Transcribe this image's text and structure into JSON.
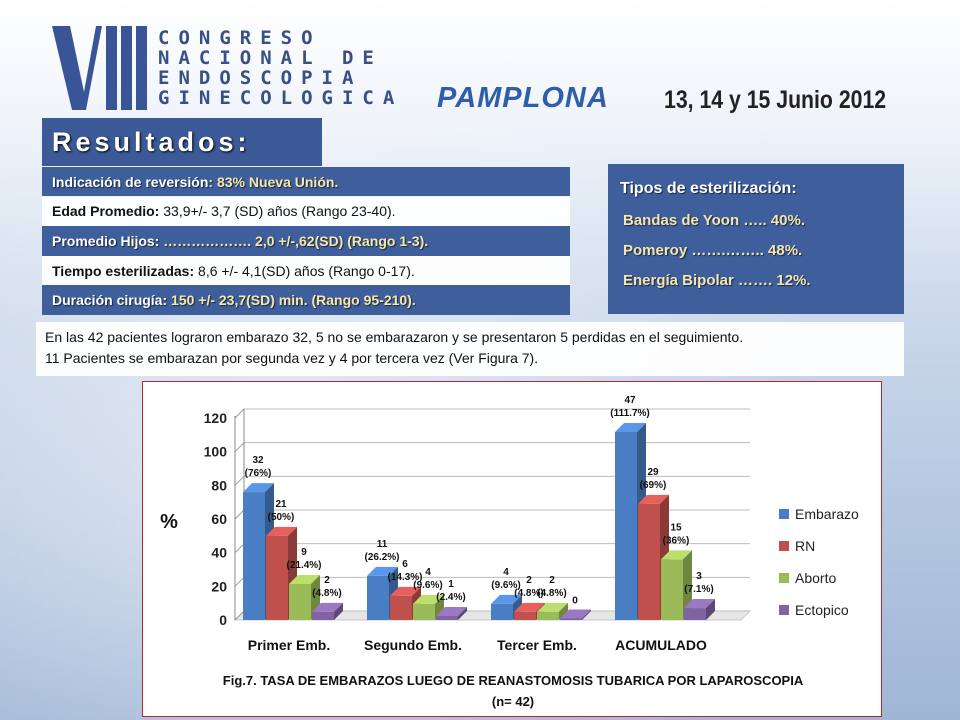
{
  "header": {
    "logo_text": "VIII",
    "congress_lines": [
      "CONGRESO",
      "NACIONAL DE",
      "ENDOSCOPIA",
      "GINECOLOGICA"
    ],
    "city": "PAMPLONA",
    "dates": "13, 14 y 15 Junio 2012"
  },
  "results": {
    "title": "Resultados:",
    "rows": [
      {
        "label": "Indicación de reversión",
        "text": ": 83% Nueva Unión."
      },
      {
        "label": "Edad Promedio:",
        "text": "  33,9+/- 3,7 (SD) años  (Rango 23-40)."
      },
      {
        "label": "Promedio Hijos:",
        "text": " ………………. 2,0 +/-,62(SD) (Rango 1-3)."
      },
      {
        "label": "Tiempo esterilizadas:",
        "text": " 8,6 +/- 4,1(SD) años (Rango 0-17)."
      },
      {
        "label": "Duración cirugía:",
        "text": " 150 +/- 23,7(SD) min. (Rango 95-210)."
      }
    ]
  },
  "sterilization": {
    "title": "Tipos de esterilización:",
    "items": [
      "Bandas de Yoon ….. 40%.",
      "Pomeroy …….…….. 48%.",
      "Energía Bipolar ……. 12%."
    ]
  },
  "note": {
    "line1": "En las 42 pacientes  lograron embarazo 32, 5 no se embarazaron y se presentaron 5 perdidas en el seguimiento.",
    "line2": "11  Pacientes se embarazan por segunda vez y  4 por tercera vez  (Ver Figura 7)."
  },
  "chart_data": {
    "type": "bar",
    "categories": [
      "Primer Emb.",
      "Segundo Emb.",
      "Tercer Emb.",
      "ACUMULADO"
    ],
    "ylabel": "%",
    "ylim": [
      0,
      120
    ],
    "yticks": [
      0,
      20,
      40,
      60,
      80,
      100,
      120
    ],
    "legend_position": "right",
    "series": [
      {
        "name": "Embarazo",
        "color": "#4a7ec4",
        "values": [
          76,
          26.2,
          9.6,
          111.7
        ],
        "labels": [
          "32\n(76%)",
          "11\n(26.2%)",
          "4\n(9.6%)",
          "47\n(111.7%)"
        ]
      },
      {
        "name": "RN",
        "color": "#c0504d",
        "values": [
          50,
          14.3,
          4.8,
          69
        ],
        "labels": [
          "21\n(50%)",
          "6\n(14.3%)",
          "2\n(4.8%)",
          "29\n(69%)"
        ]
      },
      {
        "name": "Aborto",
        "color": "#9bbb59",
        "values": [
          21.4,
          9.6,
          4.8,
          36
        ],
        "labels": [
          "9\n(21.4%)",
          "4\n(9.6%)",
          "2\n(4.8%)",
          "15\n(36%)"
        ]
      },
      {
        "name": "Ectopico",
        "color": "#8064a2",
        "values": [
          4.8,
          2.4,
          0,
          7.1
        ],
        "labels": [
          "2\n(4.8%)",
          "1\n(2.4%)",
          "0",
          "3\n(7.1%)"
        ]
      }
    ],
    "caption_line1": "Fig.7. TASA DE EMBARAZOS  LUEGO DE REANASTOMOSIS TUBARICA POR LAPAROSCOPIA",
    "caption_line2": "(n= 42)"
  }
}
